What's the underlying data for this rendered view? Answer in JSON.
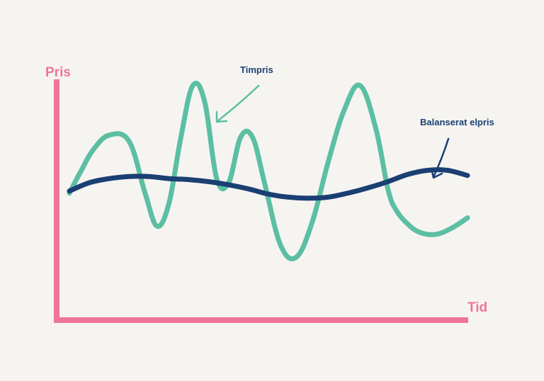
{
  "chart_data": {
    "type": "line",
    "title": "",
    "xlabel": "Tid",
    "ylabel": "Pris",
    "xlim": [
      0,
      100
    ],
    "ylim": [
      0,
      100
    ],
    "grid": false,
    "axis_color": "#ef7499",
    "series": [
      {
        "name": "Timpris",
        "color": "#5cbfa3",
        "x": [
          0,
          3,
          6,
          10,
          15,
          19,
          22,
          25,
          28,
          31,
          34,
          37,
          40,
          43,
          46,
          49,
          53,
          57,
          61,
          65,
          69,
          73,
          77,
          80,
          82,
          85,
          88,
          92,
          96,
          100
        ],
        "y": [
          45,
          56,
          66,
          73,
          70,
          45,
          29,
          40,
          72,
          97,
          89,
          52,
          50,
          72,
          72,
          50,
          20,
          14,
          31,
          60,
          85,
          97,
          76,
          47,
          37,
          30,
          26,
          25,
          28,
          33
        ]
      },
      {
        "name": "Balanserat elpris",
        "color": "#1a3f73",
        "x": [
          0,
          5,
          10,
          15,
          20,
          25,
          30,
          35,
          40,
          45,
          50,
          55,
          60,
          65,
          70,
          75,
          80,
          85,
          90,
          95,
          100
        ],
        "y": [
          46,
          50,
          52,
          53,
          53,
          52,
          51.5,
          50.5,
          49,
          47,
          44.5,
          43,
          42.5,
          43,
          45,
          47.5,
          50.5,
          54,
          56,
          56,
          53.5
        ]
      }
    ],
    "annotations": [
      {
        "text": "Timpris",
        "color": "#1a3f73",
        "target_series": 0
      },
      {
        "text": "Balanserat elpris",
        "color": "#1a3f73",
        "target_series": 1
      }
    ]
  }
}
